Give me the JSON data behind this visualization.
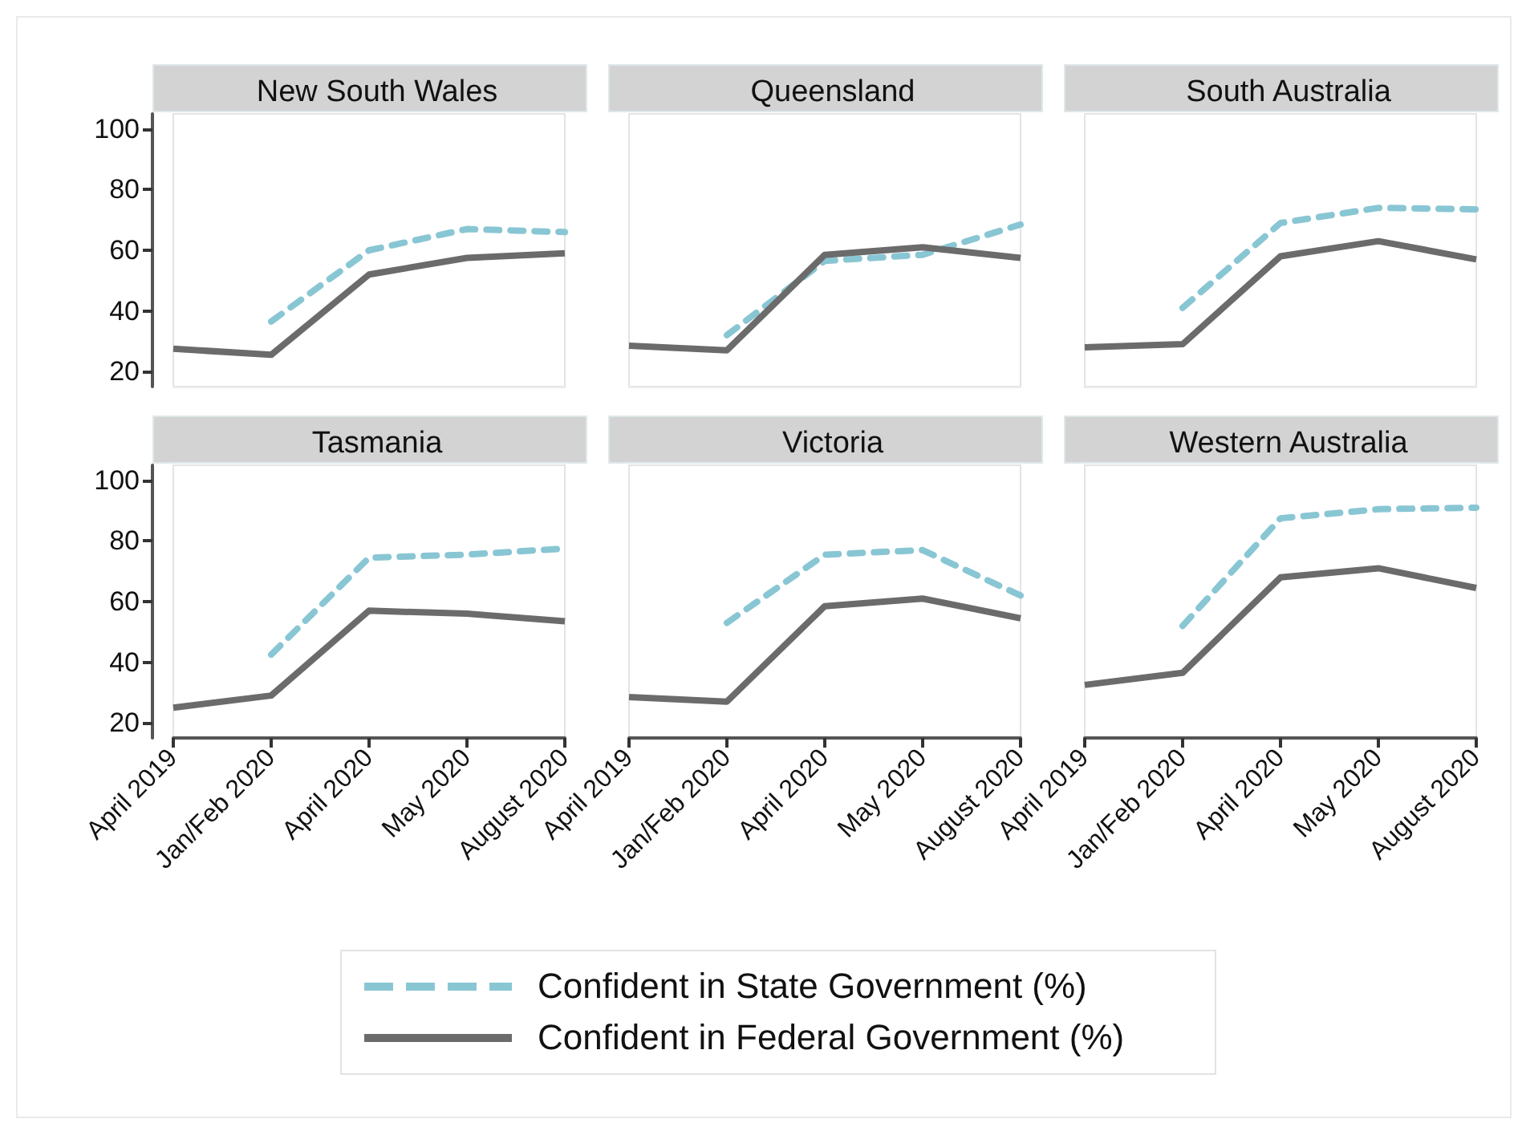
{
  "chart_data": [
    {
      "type": "line",
      "title": "New South Wales",
      "categories": [
        "April 2019",
        "Jan/Feb 2020",
        "April 2020",
        "May 2020",
        "August 2020"
      ],
      "ylim": [
        15,
        105
      ],
      "yticks": [
        20,
        40,
        60,
        80,
        100
      ],
      "tick_labels": "y",
      "legend": "bottom",
      "series": [
        {
          "name": "Confident in State Government (%)",
          "color": "#89c6d4",
          "line_style": "dashed",
          "values": [
            null,
            36.5,
            60,
            67,
            66
          ]
        },
        {
          "name": "Confident in Federal Government (%)",
          "color": "#6b6b6b",
          "line_style": "solid",
          "values": [
            27.5,
            25.5,
            52,
            57.5,
            59
          ]
        }
      ]
    },
    {
      "type": "line",
      "title": "Queensland",
      "categories": [
        "April 2019",
        "Jan/Feb 2020",
        "April 2020",
        "May 2020",
        "August 2020"
      ],
      "ylim": [
        15,
        105
      ],
      "yticks": [
        20,
        40,
        60,
        80,
        100
      ],
      "tick_labels": false,
      "legend": "bottom",
      "series": [
        {
          "name": "Confident in State Government (%)",
          "color": "#89c6d4",
          "line_style": "dashed",
          "values": [
            null,
            32,
            56.5,
            58.5,
            68.5
          ]
        },
        {
          "name": "Confident in Federal Government (%)",
          "color": "#6b6b6b",
          "line_style": "solid",
          "values": [
            28.5,
            27,
            58.5,
            61,
            57.5
          ]
        }
      ]
    },
    {
      "type": "line",
      "title": "South Australia",
      "categories": [
        "April 2019",
        "Jan/Feb 2020",
        "April 2020",
        "May 2020",
        "August 2020"
      ],
      "ylim": [
        15,
        105
      ],
      "yticks": [
        20,
        40,
        60,
        80,
        100
      ],
      "tick_labels": false,
      "legend": "bottom",
      "series": [
        {
          "name": "Confident in State Government (%)",
          "color": "#89c6d4",
          "line_style": "dashed",
          "values": [
            null,
            41,
            69,
            74,
            73.5
          ]
        },
        {
          "name": "Confident in Federal Government (%)",
          "color": "#6b6b6b",
          "line_style": "solid",
          "values": [
            28,
            29,
            58,
            63,
            57
          ]
        }
      ]
    },
    {
      "type": "line",
      "title": "Tasmania",
      "categories": [
        "April 2019",
        "Jan/Feb 2020",
        "April 2020",
        "May 2020",
        "August 2020"
      ],
      "ylim": [
        15,
        105
      ],
      "yticks": [
        20,
        40,
        60,
        80,
        100
      ],
      "legend": "bottom",
      "series": [
        {
          "name": "Confident in State Government (%)",
          "color": "#89c6d4",
          "line_style": "dashed",
          "values": [
            null,
            42.5,
            74.5,
            75.5,
            77.5
          ]
        },
        {
          "name": "Confident in Federal Government (%)",
          "color": "#6b6b6b",
          "line_style": "solid",
          "values": [
            25,
            29,
            57,
            56,
            53.5
          ]
        }
      ]
    },
    {
      "type": "line",
      "title": "Victoria",
      "categories": [
        "April 2019",
        "Jan/Feb 2020",
        "April 2020",
        "May 2020",
        "August 2020"
      ],
      "ylim": [
        15,
        105
      ],
      "yticks": [
        20,
        40,
        60,
        80,
        100
      ],
      "tick_labels": "x",
      "legend": "bottom",
      "series": [
        {
          "name": "Confident in State Government (%)",
          "color": "#89c6d4",
          "line_style": "dashed",
          "values": [
            null,
            53,
            75.5,
            77,
            62
          ]
        },
        {
          "name": "Confident in Federal Government (%)",
          "color": "#6b6b6b",
          "line_style": "solid",
          "values": [
            28.5,
            27,
            58.5,
            61,
            54.5
          ]
        }
      ]
    },
    {
      "type": "line",
      "title": "Western Australia",
      "categories": [
        "April 2019",
        "Jan/Feb 2020",
        "April 2020",
        "May 2020",
        "August 2020"
      ],
      "ylim": [
        15,
        105
      ],
      "yticks": [
        20,
        40,
        60,
        80,
        100
      ],
      "tick_labels": "x",
      "legend": "bottom",
      "series": [
        {
          "name": "Confident in State Government (%)",
          "color": "#89c6d4",
          "line_style": "dashed",
          "values": [
            null,
            52,
            87.5,
            90.5,
            91
          ]
        },
        {
          "name": "Confident in Federal Government (%)",
          "color": "#6b6b6b",
          "line_style": "solid",
          "values": [
            32.5,
            36.5,
            68,
            71,
            64.5
          ]
        }
      ]
    }
  ]
}
